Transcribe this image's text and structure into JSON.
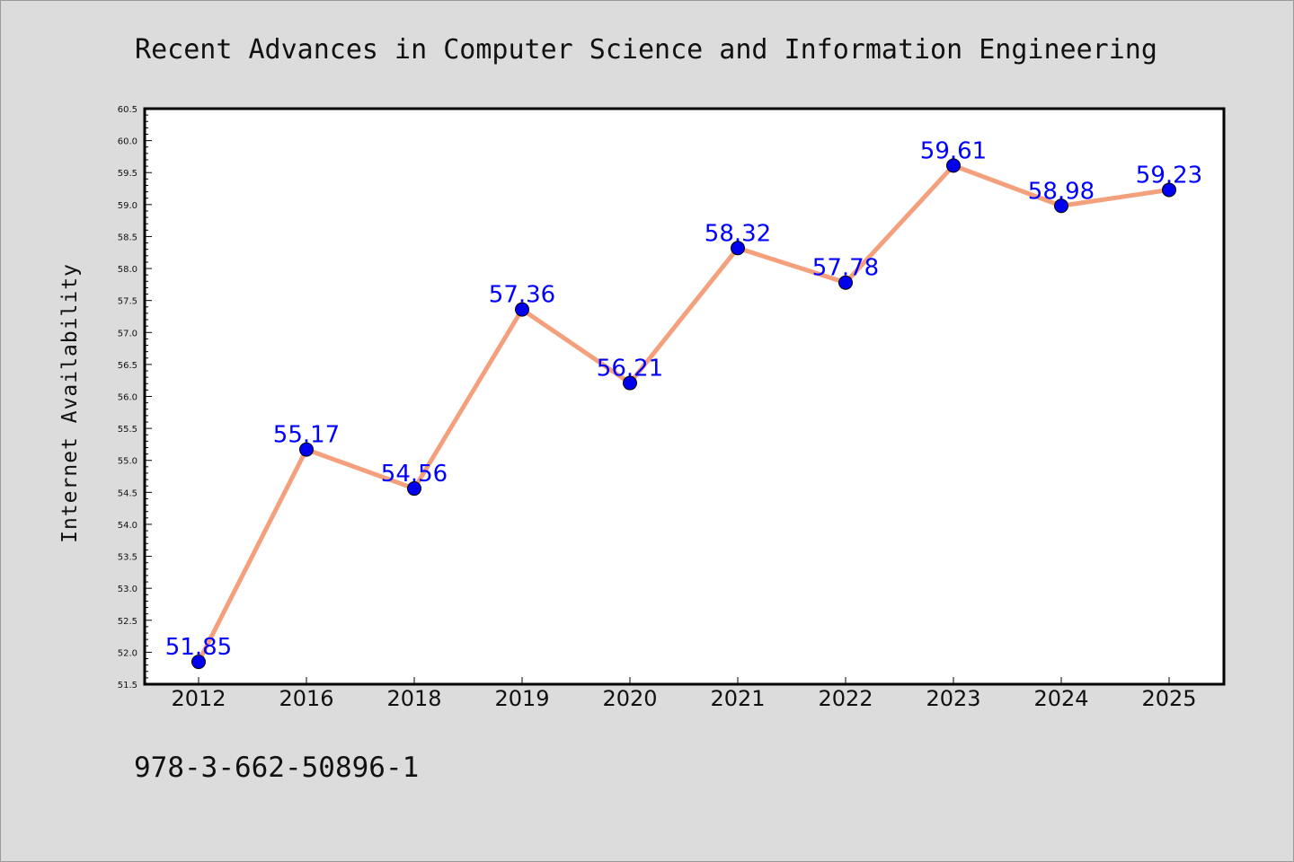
{
  "chart_data": {
    "type": "line",
    "title": "Recent Advances in Computer Science and Information Engineering",
    "xlabel": "",
    "ylabel": "Internet Availability",
    "categories": [
      "2012",
      "2016",
      "2018",
      "2019",
      "2020",
      "2021",
      "2022",
      "2023",
      "2024",
      "2025"
    ],
    "series": [
      {
        "values": [
          51.85,
          55.17,
          54.56,
          57.36,
          56.21,
          58.32,
          57.78,
          59.61,
          58.98,
          59.23
        ],
        "data_labels": [
          "51.85",
          "55.17",
          "54.56",
          "57.36",
          "56.21",
          "58.32",
          "57.78",
          "59.61",
          "58.98",
          "59.23"
        ],
        "line_color": "#f4a07c",
        "marker_color": "#0000ee"
      }
    ],
    "ylim": [
      51.5,
      60.5
    ],
    "yticks": [
      "51.5",
      "52.0",
      "52.5",
      "53.0",
      "53.5",
      "54.0",
      "54.5",
      "55.0",
      "55.5",
      "56.0",
      "56.5",
      "57.0",
      "57.5",
      "58.0",
      "58.5",
      "59.0",
      "59.5",
      "60.0",
      "60.5"
    ],
    "ytick_values": [
      51.5,
      52.0,
      52.5,
      53.0,
      53.5,
      54.0,
      54.5,
      55.0,
      55.5,
      56.0,
      56.5,
      57.0,
      57.5,
      58.0,
      58.5,
      59.0,
      59.5,
      60.0,
      60.5
    ],
    "grid": false,
    "legend": "none",
    "data_label_color": "#0000ff"
  },
  "footer": {
    "text": "978-3-662-50896-1"
  },
  "colors": {
    "background": "#dcdcdc",
    "plot_background": "#ffffff",
    "axis": "#000000"
  }
}
